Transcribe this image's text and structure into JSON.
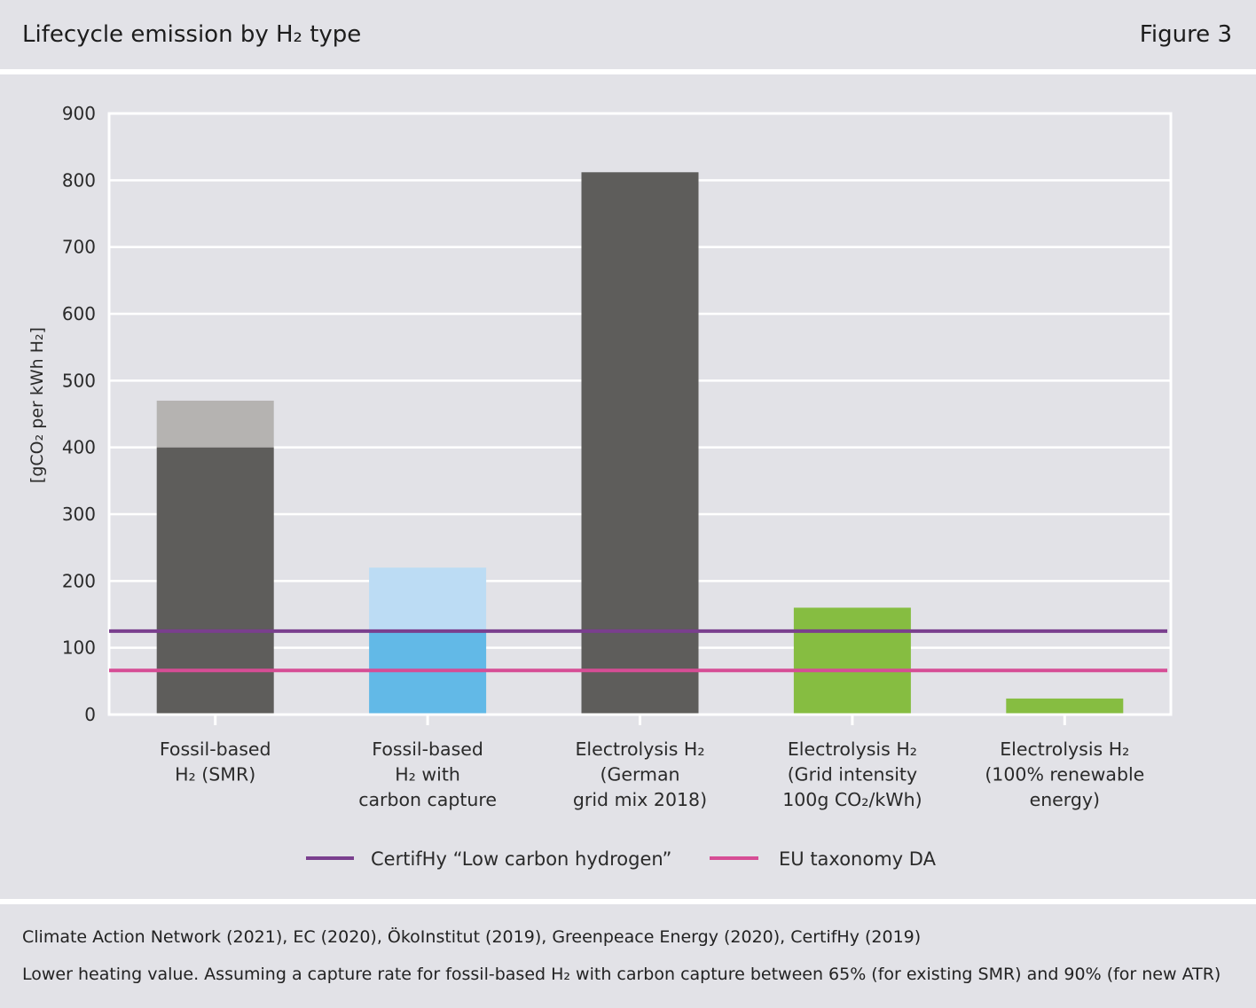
{
  "header": {
    "title": "Lifecycle emission by H₂ type",
    "figure_label": "Figure 3"
  },
  "chart_data": {
    "type": "bar",
    "title": "Lifecycle emission by H₂ type",
    "ylabel": "[gCO₂ per kWh H₂]",
    "xlabel": "",
    "ylim": [
      0,
      900
    ],
    "yticks": [
      0,
      100,
      200,
      300,
      400,
      500,
      600,
      700,
      800,
      900
    ],
    "grid": true,
    "categories": [
      [
        "Fossil-based",
        "H₂ (SMR)"
      ],
      [
        "Fossil-based",
        "H₂ with",
        "carbon capture"
      ],
      [
        "Electrolysis H₂",
        "(German",
        "grid mix 2018)"
      ],
      [
        "Electrolysis H₂",
        "(Grid intensity",
        "100g CO₂/kWh)"
      ],
      [
        "Electrolysis H₂",
        "(100% renewable",
        "energy)"
      ]
    ],
    "bars": [
      {
        "base": 400,
        "top": 470,
        "base_color": "#5e5d5b",
        "range_color": "#b5b3b1"
      },
      {
        "base": 125,
        "top": 220,
        "base_color": "#62b9e7",
        "range_color": "#bcdcf4"
      },
      {
        "base": 812,
        "top": 812,
        "base_color": "#5e5d5b",
        "range_color": "#5e5d5b"
      },
      {
        "base": 160,
        "top": 160,
        "base_color": "#86bd41",
        "range_color": "#86bd41"
      },
      {
        "base": 24,
        "top": 24,
        "base_color": "#86bd41",
        "range_color": "#86bd41"
      }
    ],
    "thresholds": [
      {
        "name": "CertifHy “Low carbon hydrogen”",
        "value": 125,
        "color": "#7a3f8e"
      },
      {
        "name": "EU taxonomy DA",
        "value": 66,
        "color": "#d64d95"
      }
    ],
    "legend_position": "bottom-center"
  },
  "footer": {
    "sources": "Climate Action Network (2021), EC (2020), ÖkoInstitut (2019), Greenpeace Energy (2020), CertifHy (2019)",
    "note": "Lower heating value. Assuming a capture rate for fossil-based H₂ with carbon capture between 65% (for existing SMR) and 90% (for new ATR)"
  }
}
